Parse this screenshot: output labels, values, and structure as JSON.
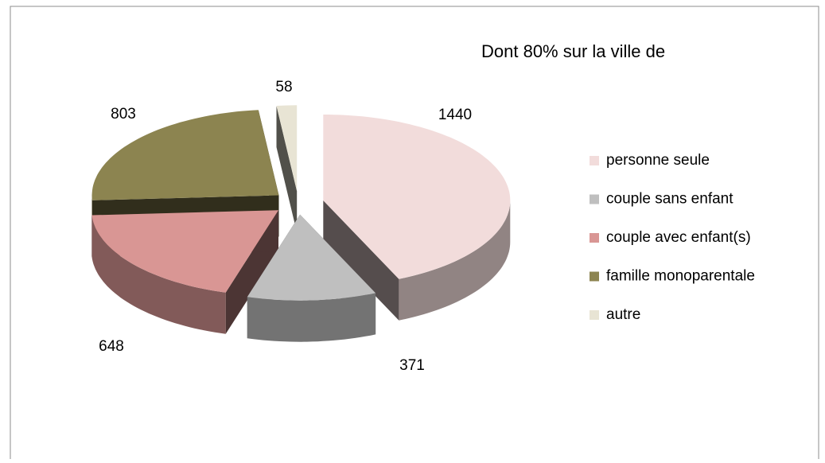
{
  "chart_data": {
    "type": "pie",
    "title": "Dont 80% sur la ville de",
    "categories": [
      "personne seule",
      "couple sans enfant",
      "couple avec enfant(s)",
      "famille monoparentale",
      "autre"
    ],
    "values": [
      1440,
      371,
      648,
      803,
      58
    ],
    "colors": [
      "#f2dcdb",
      "#bfbfbf",
      "#d99694",
      "#8c8450",
      "#e8e4d4"
    ],
    "legend": "right"
  }
}
